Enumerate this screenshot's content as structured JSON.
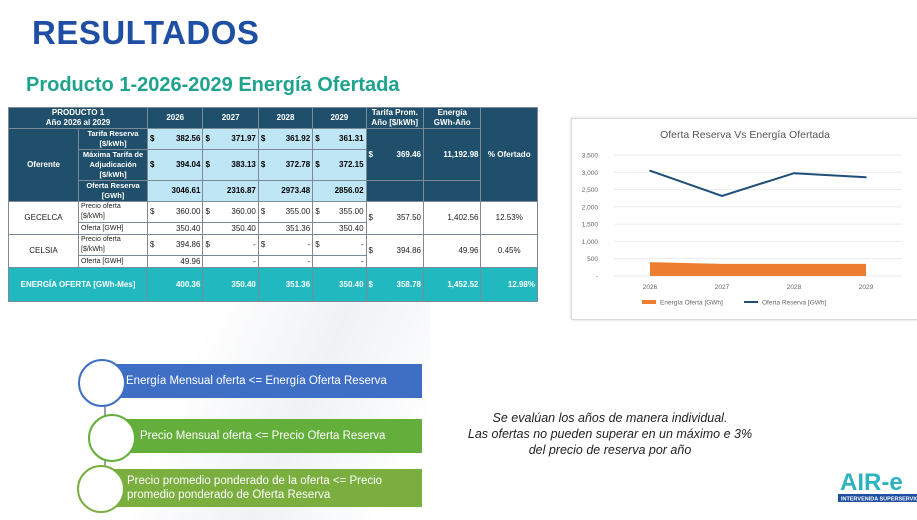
{
  "title": "RESULTADOS",
  "subtitle": "Producto 1-2026-2029 Energía Ofertada",
  "table": {
    "corner": [
      "PRODUCTO 1",
      "Año 2026 al 2029"
    ],
    "years": [
      "2026",
      "2027",
      "2028",
      "2029"
    ],
    "tarifa_prom_header": "Tarifa Prom. Año [$/kWh]",
    "energia_header": "Energía GWh-Año",
    "pct_header": "% Ofertado",
    "oferente_label": "Oferente",
    "rows_label_tarifa": "Tarifa Reserva [$/kWh]",
    "rows_label_maxima": "Máxima Tarifa de Adjudicación [$/kWh]",
    "rows_label_oferta_reserva": "Oferta Reserva [GWh]",
    "currency": "$",
    "tarifa_reserva": [
      "382.56",
      "371.97",
      "361.92",
      "361.31"
    ],
    "maxima_tarifa": [
      "394.04",
      "383.13",
      "372.78",
      "372.15"
    ],
    "maxima_prom": "369.46",
    "energia_total": "11,192.98",
    "oferta_reserva": [
      "3046.61",
      "2316.87",
      "2973.48",
      "2856.02"
    ],
    "precio_label": "Precio oferta [$/kWh]",
    "oferta_label": "Oferta [GWH]",
    "gecelca": {
      "name": "GECELCA",
      "precio": [
        "360.00",
        "360.00",
        "355.00",
        "355.00"
      ],
      "precio_prom": "357.50",
      "oferta": [
        "350.40",
        "350.40",
        "351.36",
        "350.40"
      ],
      "energia": "1,402.56",
      "pct": "12.53%"
    },
    "celsia": {
      "name": "CELSIA",
      "precio": [
        "394.86",
        "-",
        "-",
        "-"
      ],
      "precio_prom": "394.86",
      "oferta": [
        "49.96",
        "-",
        "-",
        "-"
      ],
      "energia": "49.96",
      "pct": "0.45%"
    },
    "total": {
      "label": "ENERGÍA OFERTA [GWh-Mes]",
      "values": [
        "400.36",
        "350.40",
        "351.36",
        "350.40"
      ],
      "precio": "358.78",
      "energia": "1,452.52",
      "pct": "12.98%"
    }
  },
  "chart_data": {
    "type": "bar",
    "title": "Oferta Reserva Vs Energía Ofertada",
    "categories": [
      "2026",
      "2027",
      "2028",
      "2029"
    ],
    "ylim": [
      0,
      3500
    ],
    "yticks": [
      "3,500",
      "3,000",
      "2,500",
      "2,000",
      "1,500",
      "1,000",
      "500",
      "-"
    ],
    "series": [
      {
        "name": "Energía Oferta [GWh]",
        "kind": "area",
        "color": "#ed7d31",
        "values": [
          400.36,
          350.4,
          351.36,
          350.4
        ]
      },
      {
        "name": "Oferta Reserva [GWh]",
        "kind": "line",
        "color": "#1f4e79",
        "values": [
          3046.61,
          2316.87,
          2973.48,
          2856.02
        ]
      }
    ],
    "legend_position": "bottom",
    "grid": true
  },
  "flow": [
    "Energía Mensual oferta <= Energía Oferta Reserva",
    "Precio Mensual oferta <= Precio Oferta Reserva",
    "Precio promedio ponderado de la oferta <= Precio promedio ponderado de Oferta Reserva"
  ],
  "note": [
    "Se evalúan los años de manera individual.",
    "Las ofertas no pueden superar en un máximo e 3%",
    "del precio de reserva por año"
  ],
  "logo": {
    "text": "AIR-e",
    "tagline": "INTERVENIDA SUPERSERVICIOS"
  }
}
